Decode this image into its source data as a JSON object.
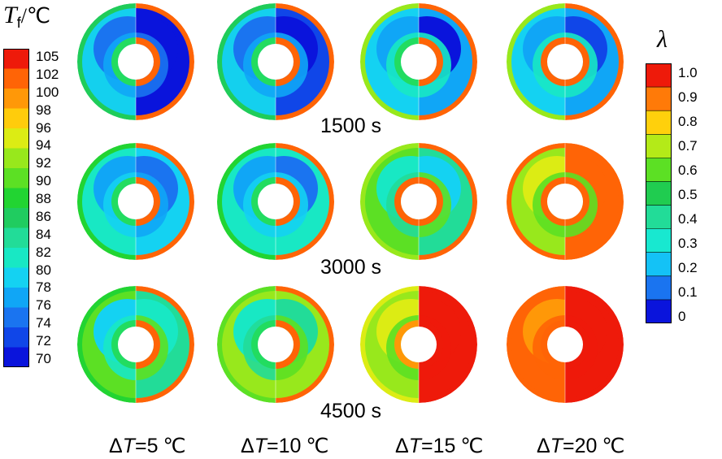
{
  "colors": {
    "tf_scale": [
      "#0a14dc",
      "#1046e8",
      "#1a74f0",
      "#10a6f6",
      "#14d2f2",
      "#18e8c4",
      "#22dc98",
      "#20cc60",
      "#22d432",
      "#5ce024",
      "#98e81c",
      "#dcec14",
      "#ffcc0c",
      "#ff9808",
      "#ff6406",
      "#ee1a0a"
    ],
    "lambda_scale": [
      "#0a14dc",
      "#1a74f0",
      "#14c2f6",
      "#18e8d0",
      "#22dc98",
      "#20cc50",
      "#5ce024",
      "#b4ea18",
      "#ffd00c",
      "#ff7a08",
      "#ee1a0a"
    ]
  },
  "tf_legend": {
    "symbol": "T",
    "subscript": "f",
    "unit": "/℃",
    "ticks": [
      "105",
      "102",
      "100",
      "98",
      "96",
      "94",
      "92",
      "90",
      "88",
      "86",
      "84",
      "82",
      "80",
      "78",
      "76",
      "74",
      "72",
      "70"
    ]
  },
  "lambda_legend": {
    "symbol": "λ",
    "ticks": [
      "1.0",
      "0.9",
      "0.8",
      "0.7",
      "0.6",
      "0.5",
      "0.4",
      "0.3",
      "0.2",
      "0.1",
      "0"
    ]
  },
  "time_labels": [
    "1500 s",
    "3000 s",
    "4500 s"
  ],
  "conditions": [
    {
      "prefix": "Δ",
      "var": "T",
      "value": "=5",
      "unit": "℃"
    },
    {
      "prefix": "Δ",
      "var": "T",
      "value": "=10",
      "unit": "℃"
    },
    {
      "prefix": "Δ",
      "var": "T",
      "value": "=15",
      "unit": "℃"
    },
    {
      "prefix": "Δ",
      "var": "T",
      "value": "=20",
      "unit": "℃"
    }
  ],
  "contour_rows": [
    {
      "time": "1500 s",
      "cells": [
        {
          "left": {
            "outer": "#1fcc5a",
            "mid": "#14d0ee",
            "inner": "#10a6f6",
            "blob": "#1a74f0",
            "rim": "#22dc60"
          },
          "right": {
            "outer": "#ff6406",
            "mid": "#0a14dc",
            "inner": "#1a74f0",
            "blob": "#0a14dc",
            "rim": "#ff6406"
          }
        },
        {
          "left": {
            "outer": "#1fcc5a",
            "mid": "#14d0ee",
            "inner": "#10a6f6",
            "blob": "#1a74f0",
            "rim": "#22dc60"
          },
          "right": {
            "outer": "#ff6406",
            "mid": "#1046e8",
            "inner": "#10a6f6",
            "blob": "#0a14dc",
            "rim": "#ff6406"
          }
        },
        {
          "left": {
            "outer": "#98e81c",
            "mid": "#14d2f2",
            "inner": "#18e8c4",
            "blob": "#10a6f6",
            "rim": "#22dc60"
          },
          "right": {
            "outer": "#ff6406",
            "mid": "#10a6f6",
            "inner": "#18e8c4",
            "blob": "#0a14dc",
            "rim": "#ff6406"
          }
        },
        {
          "left": {
            "outer": "#98e81c",
            "mid": "#14d2f2",
            "inner": "#18e8c4",
            "blob": "#10a6f6",
            "rim": "#ff6406"
          },
          "right": {
            "outer": "#ff6406",
            "mid": "#10a6f6",
            "inner": "#18e8c4",
            "blob": "#1046e8",
            "rim": "#ff6406"
          }
        }
      ]
    },
    {
      "time": "3000 s",
      "cells": [
        {
          "left": {
            "outer": "#22d432",
            "mid": "#18e8c4",
            "inner": "#14d2f2",
            "blob": "#10a6f6",
            "rim": "#22dc60"
          },
          "right": {
            "outer": "#ff6406",
            "mid": "#14d2f2",
            "inner": "#10a6f6",
            "blob": "#1a74f0",
            "rim": "#ff6406"
          }
        },
        {
          "left": {
            "outer": "#22d432",
            "mid": "#18e8c4",
            "inner": "#14d2f2",
            "blob": "#10a6f6",
            "rim": "#22dc60"
          },
          "right": {
            "outer": "#ff6406",
            "mid": "#18e8c4",
            "inner": "#14d2f2",
            "blob": "#1a74f0",
            "rim": "#ff6406"
          }
        },
        {
          "left": {
            "outer": "#98e81c",
            "mid": "#5ce024",
            "inner": "#22dc98",
            "blob": "#18e8c4",
            "rim": "#ff6406"
          },
          "right": {
            "outer": "#ff6406",
            "mid": "#22dc98",
            "inner": "#5ce024",
            "blob": "#14d2f2",
            "rim": "#ff6406"
          }
        },
        {
          "left": {
            "outer": "#ff6406",
            "mid": "#98e81c",
            "inner": "#5ce024",
            "blob": "#dcec14",
            "rim": "#ff6406"
          },
          "right": {
            "outer": "#ff6406",
            "mid": "#ff6406",
            "inner": "#5ce024",
            "blob": "#ff6406",
            "rim": "#ff6406"
          }
        }
      ]
    },
    {
      "time": "4500 s",
      "cells": [
        {
          "left": {
            "outer": "#22d432",
            "mid": "#5ce024",
            "inner": "#18e8c4",
            "blob": "#14d2f2",
            "rim": "#22dc60"
          },
          "right": {
            "outer": "#ff6406",
            "mid": "#22dc98",
            "inner": "#5ce024",
            "blob": "#18e8c4",
            "rim": "#ff6406"
          }
        },
        {
          "left": {
            "outer": "#5ce024",
            "mid": "#98e81c",
            "inner": "#22dc98",
            "blob": "#18e8c4",
            "rim": "#22dc60"
          },
          "right": {
            "outer": "#ff6406",
            "mid": "#98e81c",
            "inner": "#5ce024",
            "blob": "#22dc98",
            "rim": "#ff6406"
          }
        },
        {
          "left": {
            "outer": "#dcec14",
            "mid": "#98e81c",
            "inner": "#5ce024",
            "blob": "#dcec14",
            "rim": "#ff9808"
          },
          "right": {
            "outer": "#ee1a0a",
            "mid": "#ee1a0a",
            "inner": "#ee1a0a",
            "blob": "#ee1a0a",
            "rim": "#ee1a0a"
          }
        },
        {
          "left": {
            "outer": "#ff6406",
            "mid": "#ff6406",
            "inner": "#ff6406",
            "blob": "#ff9808",
            "rim": "#ff6406"
          },
          "right": {
            "outer": "#ee1a0a",
            "mid": "#ee1a0a",
            "inner": "#ee1a0a",
            "blob": "#ee1a0a",
            "rim": "#ee1a0a"
          }
        }
      ]
    }
  ]
}
